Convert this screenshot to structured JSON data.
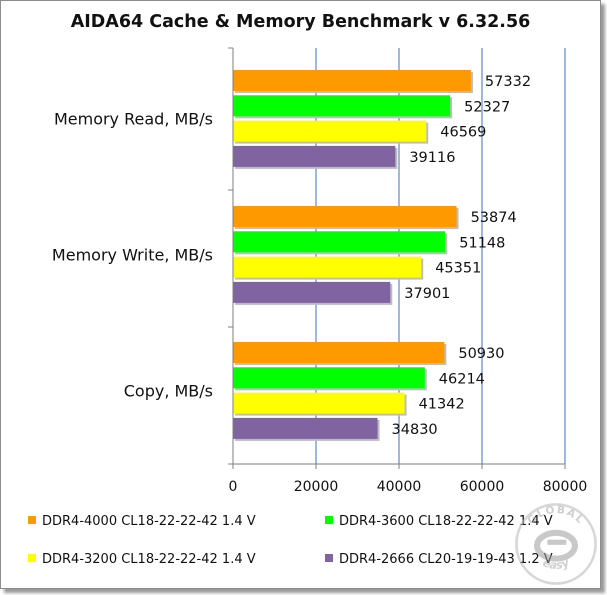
{
  "chart_data": {
    "type": "bar",
    "orientation": "horizontal",
    "title": "AIDA64 Cache & Memory Benchmark v 6.32.56",
    "categories": [
      "Memory Read, MB/s",
      "Memory Write, MB/s",
      "Copy, MB/s"
    ],
    "series": [
      {
        "name": "DDR4-4000 CL18-22-22-42 1.4 V",
        "color": "#ff9900",
        "values": [
          57332,
          53874,
          50930
        ]
      },
      {
        "name": "DDR4-3600 CL18-22-22-42 1.4 V",
        "color": "#00ff00",
        "values": [
          52327,
          51148,
          46214
        ]
      },
      {
        "name": "DDR4-3200 CL18-22-22-42 1.4 V",
        "color": "#ffff00",
        "values": [
          46569,
          45351,
          41342
        ]
      },
      {
        "name": "DDR4-2666 CL20-19-19-43 1.2 V",
        "color": "#8064a2",
        "values": [
          39116,
          37901,
          34830
        ]
      }
    ],
    "xlim": [
      0,
      80000
    ],
    "xticks": [
      0,
      20000,
      40000,
      60000,
      80000
    ],
    "xtick_labels": [
      "0",
      "20000",
      "40000",
      "60000",
      "80000"
    ],
    "grid": "vertical",
    "gridline_color": "#5f88c6",
    "legend_position": "bottom"
  },
  "watermark": {
    "icon": "globaleasy-logo-icon",
    "top_text": "GLOBAL",
    "bottom_text": "easy"
  }
}
